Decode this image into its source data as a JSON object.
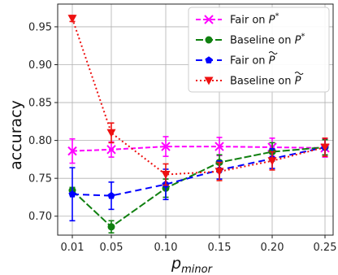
{
  "chart_data": {
    "type": "line",
    "xlabel": "p",
    "xlabel_sub": "minor",
    "ylabel": "accuracy",
    "x": [
      0.01,
      0.05,
      0.1,
      0.15,
      0.2,
      0.25
    ],
    "x_tick_labels": [
      "0.01",
      "0.05",
      "0.10",
      "0.15",
      "0.20",
      "0.25"
    ],
    "y_ticks": [
      0.7,
      0.75,
      0.8,
      0.85,
      0.9,
      0.95
    ],
    "y_tick_labels": [
      "0.70",
      "0.75",
      "0.80",
      "0.85",
      "0.90",
      "0.95"
    ],
    "ylim": [
      0.675,
      0.98
    ],
    "grid": true,
    "legend_position": "top-right",
    "series": [
      {
        "legend_base": "Fair on ",
        "legend_math": "P*",
        "color": "#ff00ff",
        "marker": "x",
        "dash": "6,3",
        "values": [
          0.786,
          0.788,
          0.792,
          0.792,
          0.791,
          0.79
        ],
        "errors": [
          0.016,
          0.01,
          0.013,
          0.012,
          0.012,
          0.012
        ]
      },
      {
        "legend_base": "Baseline on ",
        "legend_math": "P*",
        "color": "#108010",
        "marker": "circle",
        "dash": "9,3",
        "values": [
          0.734,
          0.686,
          0.737,
          0.771,
          0.785,
          0.791
        ],
        "errors": [
          0.004,
          0.008,
          0.012,
          0.01,
          0.012,
          0.01
        ]
      },
      {
        "legend_base": "Fair on ",
        "legend_math": "P~",
        "color": "#0000ff",
        "marker": "pentagon",
        "dash": "8,5",
        "values": [
          0.729,
          0.727,
          0.742,
          0.761,
          0.776,
          0.791
        ],
        "errors": [
          0.035,
          0.018,
          0.02,
          0.012,
          0.013,
          0.012
        ]
      },
      {
        "legend_base": "Baseline on ",
        "legend_math": "P~",
        "color": "#ee1111",
        "marker": "triangle-down",
        "dash": "2,3",
        "values": [
          0.961,
          0.81,
          0.755,
          0.759,
          0.773,
          0.791
        ],
        "errors": [
          0.004,
          0.013,
          0.014,
          0.012,
          0.012,
          0.012
        ]
      }
    ]
  }
}
